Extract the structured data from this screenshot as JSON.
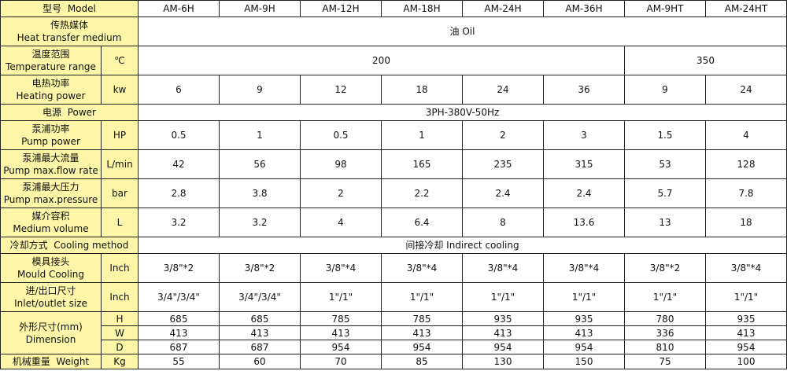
{
  "colors": {
    "label_bg": "#fdf5a8",
    "cell_bg": "#ffffff",
    "border": "#222222"
  },
  "models": [
    "AM-6H",
    "AM-9H",
    "AM-12H",
    "AM-18H",
    "AM-24H",
    "AM-36H",
    "AM-9HT",
    "AM-24HT"
  ],
  "rows": {
    "model": {
      "zh": "型号",
      "en": "Model"
    },
    "medium": {
      "zh": "传热媒体",
      "en": "Heat transfer medium",
      "value": "油 Oil"
    },
    "temp": {
      "zh": "温度范围",
      "en": "Temperature range",
      "unit": "℃",
      "value_a": "200",
      "value_b": "350"
    },
    "heating": {
      "zh": "电热功率",
      "en": "Heating power",
      "unit": "kw",
      "values": [
        "6",
        "9",
        "12",
        "18",
        "24",
        "36",
        "9",
        "24"
      ]
    },
    "power": {
      "zh": "电源",
      "en": "Power",
      "value": "3PH-380V-50Hz"
    },
    "pump": {
      "zh": "泵浦功率",
      "en": "Pump power",
      "unit": "HP",
      "values": [
        "0.5",
        "1",
        "0.5",
        "1",
        "2",
        "3",
        "1.5",
        "4"
      ]
    },
    "flow": {
      "zh": "泵浦最大流量",
      "en": "Pump max.flow rate",
      "unit": "L/min",
      "values": [
        "42",
        "56",
        "98",
        "165",
        "235",
        "315",
        "53",
        "128"
      ]
    },
    "pressure": {
      "zh": "泵浦最大压力",
      "en": "Pump max.pressure",
      "unit": "bar",
      "values": [
        "2.8",
        "3.8",
        "2",
        "2.2",
        "2.4",
        "2.4",
        "5.7",
        "7.8"
      ]
    },
    "volume": {
      "zh": "媒介容积",
      "en": "Medium volume",
      "unit": "L",
      "values": [
        "3.2",
        "3.2",
        "4",
        "6.4",
        "8",
        "13.6",
        "13",
        "18"
      ]
    },
    "cooling": {
      "zh": "冷却方式",
      "en": "Cooling method",
      "value": "间接冷却 Indirect cooling"
    },
    "mould": {
      "zh": "模具接头",
      "en": "Mould Cooling",
      "unit": "Inch",
      "values": [
        "3/8\"*2",
        "3/8\"*2",
        "3/8\"*4",
        "3/8\"*4",
        "3/8\"*4",
        "3/8\"*4",
        "3/8\"*2",
        "3/8\"*4"
      ]
    },
    "inlet": {
      "zh": "进/出口尺寸",
      "en": "Inlet/outlet size",
      "unit": "Inch",
      "values": [
        "3/4\"/3/4\"",
        "3/4\"/3/4\"",
        "1\"/1\"",
        "1\"/1\"",
        "1\"/1\"",
        "1\"/1\"",
        "1\"/1\"",
        "1\"/1\""
      ]
    },
    "dimension": {
      "zh": "外形尺寸(mm)",
      "en": "Dimension",
      "H": {
        "unit": "H",
        "values": [
          "685",
          "685",
          "785",
          "785",
          "935",
          "935",
          "780",
          "935"
        ]
      },
      "W": {
        "unit": "W",
        "values": [
          "413",
          "413",
          "413",
          "413",
          "413",
          "413",
          "336",
          "413"
        ]
      },
      "D": {
        "unit": "D",
        "values": [
          "687",
          "687",
          "954",
          "954",
          "954",
          "954",
          "810",
          "954"
        ]
      }
    },
    "weight": {
      "zh": "机械重量",
      "en": "Weight",
      "unit": "Kg",
      "values": [
        "55",
        "60",
        "70",
        "85",
        "130",
        "150",
        "75",
        "100"
      ]
    }
  }
}
